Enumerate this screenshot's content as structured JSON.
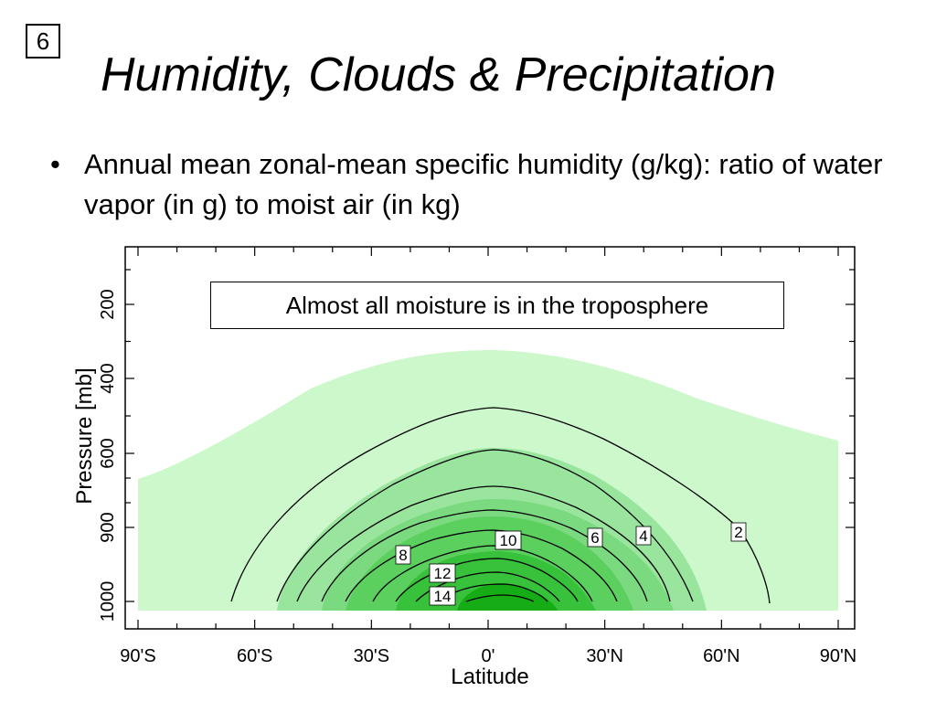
{
  "slide": {
    "number": "6",
    "title": "Humidity, Clouds & Precipitation",
    "bullet": "Annual mean zonal-mean specific humidity (g/kg): ratio of water vapor (in g) to moist air (in kg)",
    "callout": "Almost all moisture is in the troposphere"
  },
  "colors": {
    "level_2": "#ccf8cc",
    "level_6": "#99e59d",
    "level_8": "#7bd97f",
    "level_10": "#5cd05f",
    "level_12": "#38c13b",
    "level_14": "#16ac16",
    "contour": "#000000"
  },
  "chart_data": {
    "type": "contour",
    "title": "",
    "xlabel": "Latitude",
    "ylabel": "Pressure [mb]",
    "x_ticks": [
      "90'S",
      "60'S",
      "30'S",
      "0'",
      "30'N",
      "60'N",
      "90'N"
    ],
    "y_ticks": [
      "200",
      "400",
      "600",
      "900",
      "1000"
    ],
    "units": "g/kg",
    "contour_labels": [
      {
        "text": "2",
        "lat": 65,
        "p": 920
      },
      {
        "text": "4",
        "lat": 40,
        "p": 920
      },
      {
        "text": "6",
        "lat": 27,
        "p": 925
      },
      {
        "text": "8",
        "lat": -23,
        "p": 950
      },
      {
        "text": "10",
        "lat": 5,
        "p": 950
      },
      {
        "text": "12",
        "lat": -13,
        "p": 1000
      },
      {
        "text": "14",
        "lat": -13,
        "p": 1020
      }
    ],
    "levels": [
      2,
      4,
      6,
      8,
      10,
      12,
      14
    ]
  }
}
